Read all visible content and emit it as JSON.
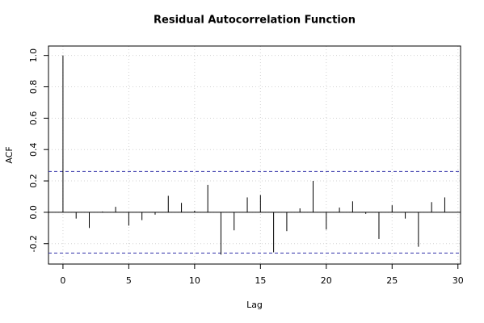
{
  "chart_data": {
    "type": "acf",
    "title": "Residual Autocorrelation Function",
    "x_label": "Lag",
    "y_label": "ACF",
    "x": [
      0,
      1,
      2,
      3,
      4,
      5,
      6,
      7,
      8,
      9,
      10,
      11,
      12,
      13,
      14,
      15,
      16,
      17,
      18,
      19,
      20,
      21,
      22,
      23,
      24,
      25,
      26,
      27,
      28,
      29
    ],
    "values": [
      1.0,
      -0.04,
      -0.1,
      0.005,
      0.035,
      -0.085,
      -0.05,
      -0.015,
      0.105,
      0.06,
      0.01,
      0.175,
      -0.27,
      -0.115,
      0.095,
      0.11,
      -0.255,
      -0.12,
      0.025,
      0.2,
      -0.11,
      0.03,
      0.07,
      -0.01,
      -0.17,
      0.045,
      -0.04,
      -0.22,
      0.065,
      0.095
    ],
    "color": "#000000",
    "confidence_bounds": [
      0.26,
      -0.26
    ],
    "confidence_color": "#3333aa",
    "xlim": [
      -1.1,
      30.2
    ],
    "ylim": [
      -0.33,
      1.06
    ],
    "xticks": [
      0,
      5,
      10,
      15,
      20,
      25,
      30
    ],
    "yticks": [
      -0.2,
      {
        "value": 0,
        "label": "0.0"
      },
      0.2,
      0.4,
      0.6,
      0.8,
      {
        "value": 1,
        "label": "1.0"
      }
    ],
    "grid": true
  }
}
